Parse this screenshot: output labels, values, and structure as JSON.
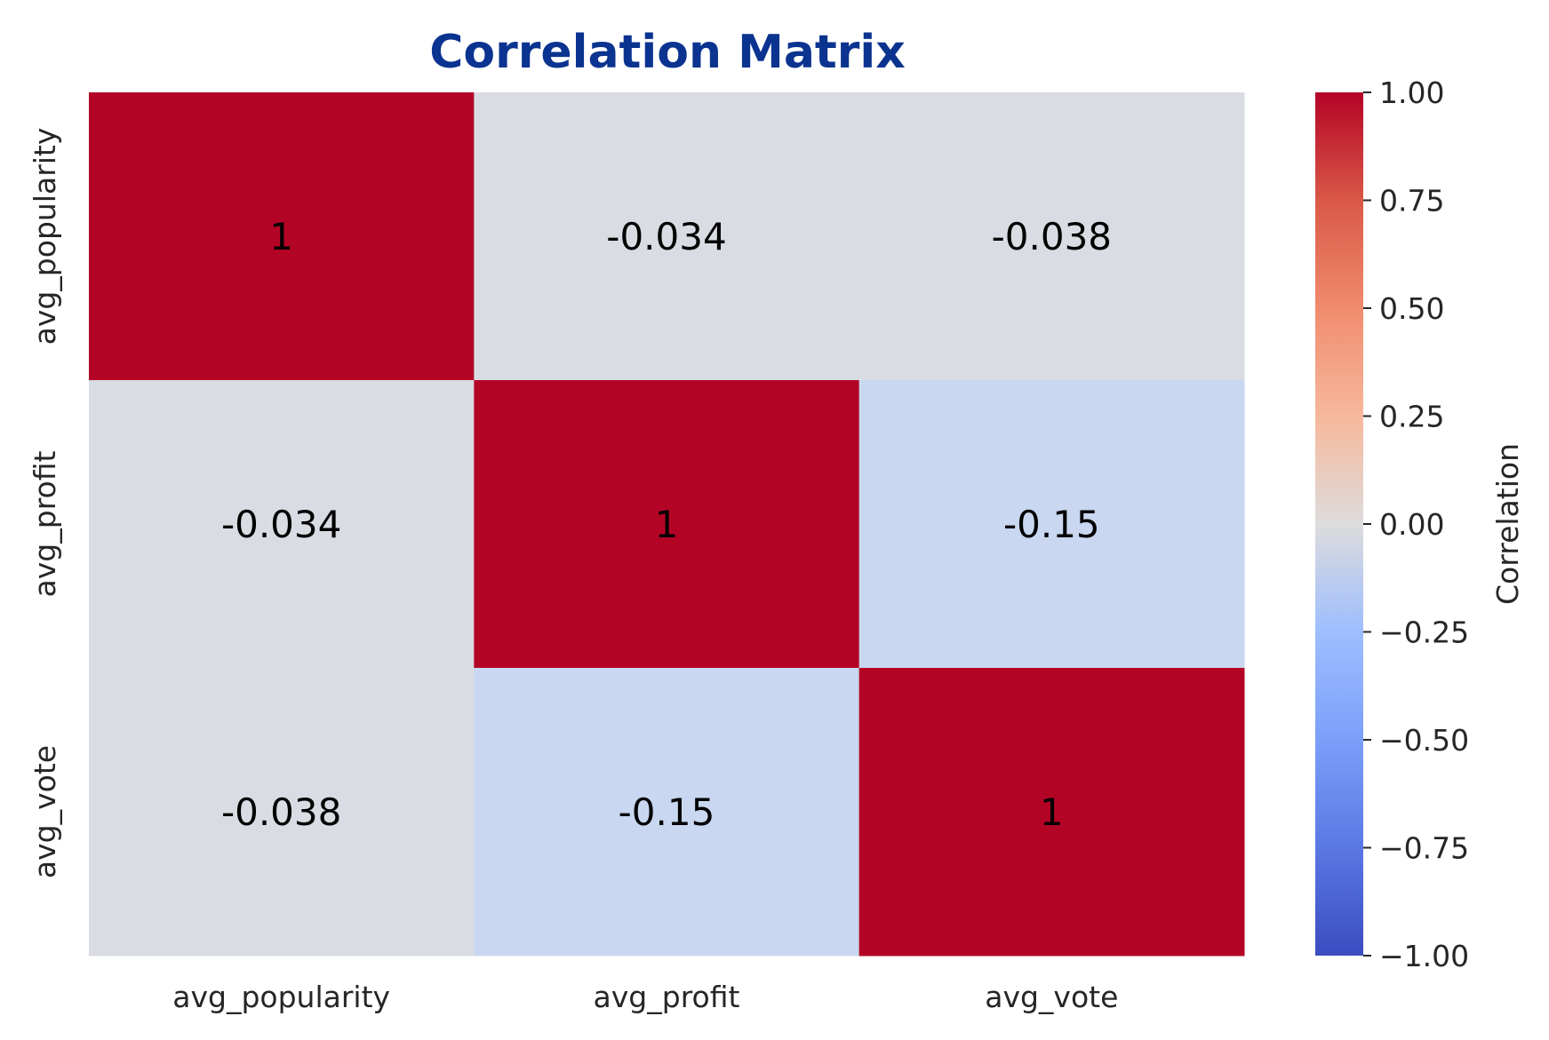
{
  "chart_data": {
    "type": "heatmap",
    "title": "Correlation Matrix",
    "xlabel": "",
    "ylabel": "",
    "x_categories": [
      "avg_popularity",
      "avg_profit",
      "avg_vote"
    ],
    "y_categories": [
      "avg_popularity",
      "avg_profit",
      "avg_vote"
    ],
    "values": [
      [
        1,
        -0.034,
        -0.038
      ],
      [
        -0.034,
        1,
        -0.15
      ],
      [
        -0.038,
        -0.15,
        1
      ]
    ],
    "annotations": [
      [
        "1",
        "-0.034",
        "-0.038"
      ],
      [
        "-0.034",
        "1",
        "-0.15"
      ],
      [
        "-0.038",
        "-0.15",
        "1"
      ]
    ],
    "colormap": "coolwarm",
    "colors": {
      "min": "#3b4cc0",
      "mid": "#dddddd",
      "max": "#b40426",
      "title": "#0b3390"
    },
    "colorbar": {
      "label": "Correlation",
      "range": [
        -1.0,
        1.0
      ],
      "ticks": [
        1.0,
        0.75,
        0.5,
        0.25,
        0.0,
        -0.25,
        -0.5,
        -0.75,
        -1.0
      ],
      "tick_labels": [
        "1.00",
        "0.75",
        "0.50",
        "0.25",
        "0.00",
        "−0.25",
        "−0.50",
        "−0.75",
        "−1.00"
      ]
    },
    "grid": false,
    "legend": "colorbar-right"
  }
}
